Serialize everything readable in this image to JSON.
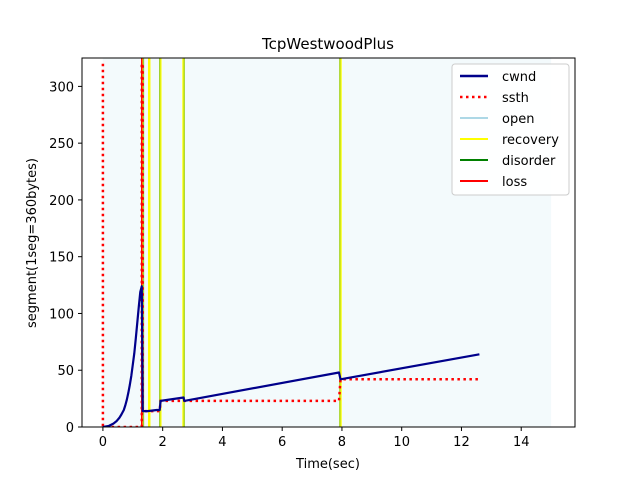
{
  "chart_data": {
    "type": "line",
    "title": "TcpWestwoodPlus",
    "xlabel": "Time(sec)",
    "ylabel": "segment(1seg=360bytes)",
    "xlim": [
      -0.7,
      15.8
    ],
    "ylim": [
      0,
      325
    ],
    "xticks": [
      0,
      2,
      4,
      6,
      8,
      10,
      12,
      14
    ],
    "yticks": [
      0,
      50,
      100,
      150,
      200,
      250,
      300
    ],
    "grid": false,
    "legend_position": "top-right",
    "colors": {
      "cwnd": "#00008b",
      "ssth": "#ff0000",
      "open": "#add8e6",
      "recovery": "#ffff00",
      "disorder": "#008000",
      "loss": "#ff0000",
      "open_band": "#f3fafc"
    },
    "series": [
      {
        "name": "cwnd",
        "style": "solid",
        "points": [
          [
            0,
            0
          ],
          [
            0.2,
            1
          ],
          [
            0.35,
            3
          ],
          [
            0.45,
            5
          ],
          [
            0.55,
            8
          ],
          [
            0.62,
            11
          ],
          [
            0.7,
            15
          ],
          [
            0.75,
            19
          ],
          [
            0.8,
            24
          ],
          [
            0.85,
            30
          ],
          [
            0.9,
            37
          ],
          [
            0.95,
            45
          ],
          [
            1.0,
            55
          ],
          [
            1.05,
            65
          ],
          [
            1.1,
            78
          ],
          [
            1.15,
            92
          ],
          [
            1.2,
            106
          ],
          [
            1.25,
            119
          ],
          [
            1.3,
            124
          ],
          [
            1.33,
            14
          ],
          [
            1.5,
            14
          ],
          [
            1.8,
            15
          ],
          [
            1.9,
            15
          ],
          [
            1.93,
            23
          ],
          [
            2.7,
            26
          ],
          [
            2.72,
            23
          ],
          [
            7.9,
            48
          ],
          [
            7.95,
            42
          ],
          [
            12.6,
            64
          ]
        ]
      },
      {
        "name": "ssth",
        "style": "dotted",
        "points": [
          [
            0,
            320
          ],
          [
            0,
            0
          ],
          [
            1.3,
            0
          ],
          [
            1.3,
            320
          ],
          [
            1.33,
            320
          ],
          [
            1.33,
            14
          ],
          [
            1.9,
            14
          ],
          [
            1.93,
            23
          ],
          [
            7.9,
            23
          ],
          [
            7.95,
            42
          ],
          [
            12.6,
            42
          ]
        ]
      },
      {
        "name": "open",
        "style": "band",
        "ranges": [
          [
            0,
            15
          ]
        ]
      },
      {
        "name": "recovery",
        "style": "vertical-lines",
        "x": [
          1.33,
          1.55,
          1.92,
          2.7,
          7.95
        ]
      },
      {
        "name": "disorder",
        "style": "vertical-lines",
        "x": [
          1.36,
          1.9,
          2.72,
          7.93
        ]
      },
      {
        "name": "loss",
        "style": "vertical-lines",
        "x": [
          1.3
        ]
      }
    ],
    "legend": [
      "cwnd",
      "ssth",
      "open",
      "recovery",
      "disorder",
      "loss"
    ]
  }
}
